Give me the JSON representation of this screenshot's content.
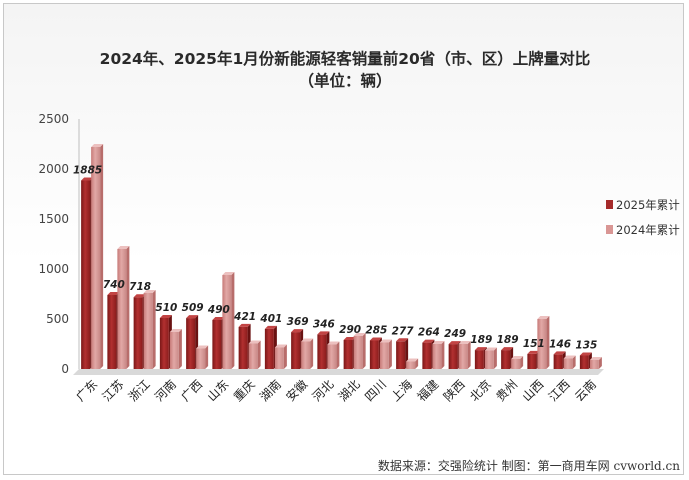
{
  "chart_data": {
    "type": "bar",
    "title": "2024年、2025年1月份新能源轻客销量前20省（市、区）上牌量对比",
    "subtitle": "（单位：辆）",
    "categories": [
      "广东",
      "江苏",
      "浙江",
      "河南",
      "广西",
      "山东",
      "重庆",
      "湖南",
      "安徽",
      "河北",
      "湖北",
      "四川",
      "上海",
      "福建",
      "陕西",
      "北京",
      "贵州",
      "山西",
      "江西",
      "云南"
    ],
    "series": [
      {
        "name": "2025年累计",
        "color": "#a52a2a",
        "values": [
          1885,
          740,
          718,
          510,
          509,
          490,
          421,
          401,
          369,
          346,
          290,
          285,
          277,
          264,
          249,
          189,
          189,
          151,
          146,
          135
        ]
      },
      {
        "name": "2024年累计",
        "color": "#d99694",
        "values": [
          2220,
          1200,
          760,
          370,
          205,
          940,
          255,
          215,
          275,
          245,
          330,
          265,
          75,
          250,
          250,
          185,
          100,
          500,
          105,
          90
        ]
      }
    ],
    "y_ticks": [
      "0",
      "500",
      "1000",
      "1500",
      "2000",
      "2500"
    ],
    "ylim": [
      0,
      2500
    ],
    "xlabel": "",
    "ylabel": "",
    "grid": false,
    "legend_position": "right",
    "data_labels_series": "2025年累计"
  },
  "source": "数据来源：交强险统计 制图：第一商用车网 cvworld.cn"
}
